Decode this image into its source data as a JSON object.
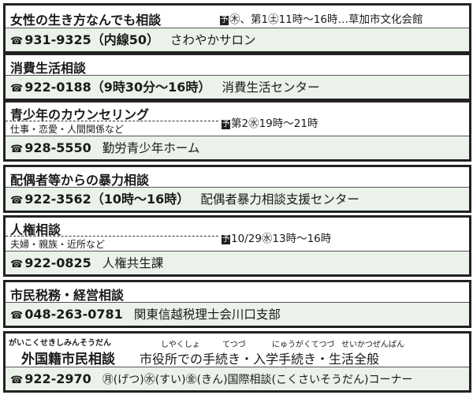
{
  "reservation_icon": "予",
  "colors": {
    "phone_row_bg": "#eaf2ea",
    "border": "#222222"
  },
  "items": [
    {
      "title": "女性の生き方なんでも相談",
      "schedule": "㊍、第1㊏11時〜16時…草加市文化会館",
      "phone": "931-9325（内線50）",
      "name": "さわやかサロン"
    },
    {
      "title": "消費生活相談",
      "phone": "922-0188（9時30分〜16時）",
      "name": "消費生活センター"
    },
    {
      "title": "青少年のカウンセリング",
      "subtitle": "仕事・恋愛・人間関係など",
      "schedule": "第2㊌19時〜21時",
      "phone": "928-5550",
      "name": "勤労青少年ホーム"
    },
    {
      "title": "配偶者等からの暴力相談",
      "phone": "922-3562（10時〜16時）",
      "name": "配偶者暴力相談支援センター"
    },
    {
      "title": "人権相談",
      "subtitle": "夫婦・親族・近所など",
      "schedule": "10/29㊌13時〜16時",
      "phone": "922-0825",
      "name": "人権共生課"
    },
    {
      "title": "市民税務・経営相談",
      "phone": "048-263-0781",
      "name": "関東信越税理士会川口支部"
    },
    {
      "title": "外国籍市民相談",
      "title_ruby": "がいこくせきしみんそうだん",
      "description": "市役所での手続き・入学手続き・生活全般",
      "description_ruby": [
        "しやくしょ",
        "てつづ",
        "にゅうがくてつづ",
        "せいかつぜんぱん"
      ],
      "phone": "922-2970",
      "name": "㊊(げつ)㊌(すい)㊎(きん)国際相談(こくさいそうだん)コーナー"
    }
  ]
}
